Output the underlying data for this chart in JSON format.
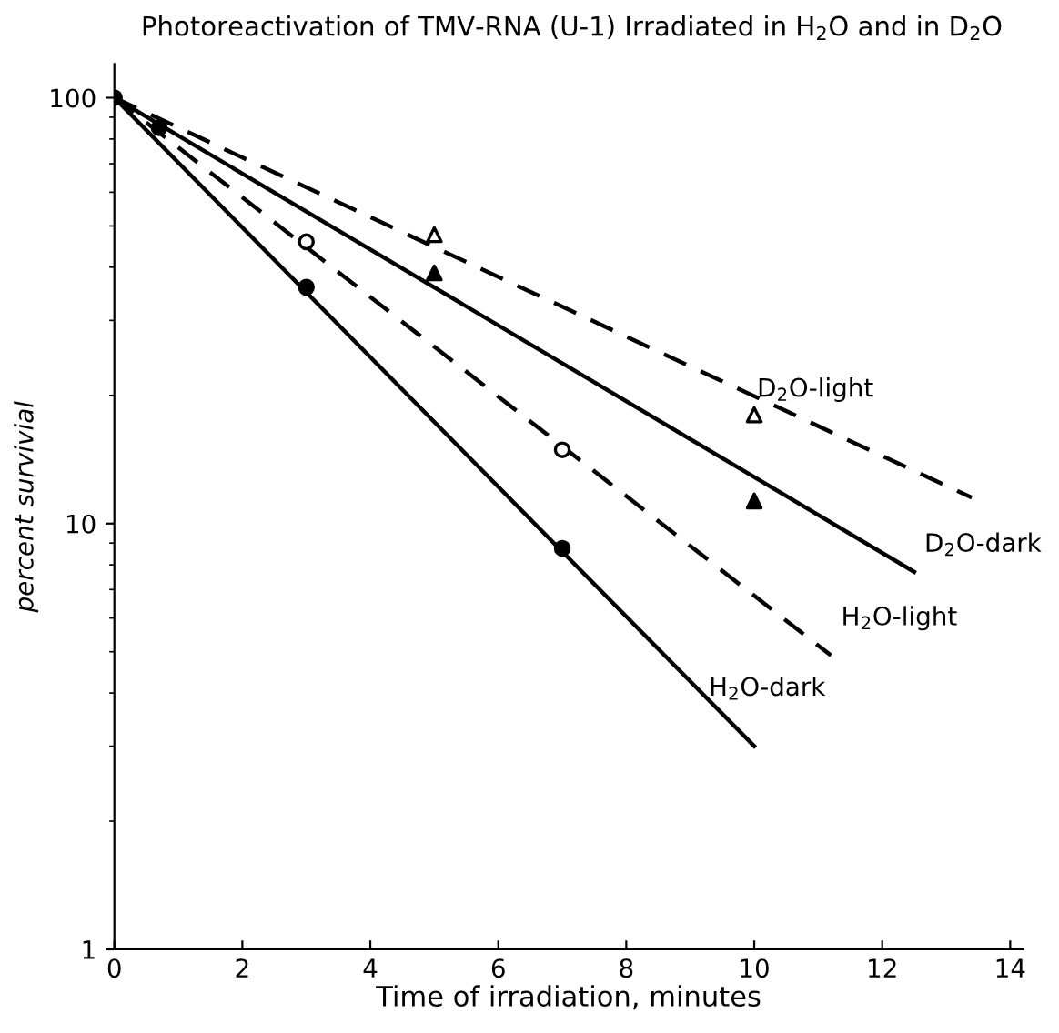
{
  "chart_data": {
    "type": "line",
    "title": "Photoreactivation of TMV-RNA (U-1) Irradiated in H$_{2}$O and in D$_{2}$O",
    "xlabel": "Time of irradiation, minutes",
    "ylabel": "percent survivial",
    "log": "y",
    "xlim": [
      0,
      14.2
    ],
    "ylim": [
      1,
      120
    ],
    "xticks": [
      0,
      2,
      4,
      6,
      8,
      10,
      12,
      14
    ],
    "yticks": [
      1,
      10,
      100
    ],
    "grid": false,
    "legend": false,
    "series": [
      {
        "name": "D$_{2}$O-light",
        "line_style": "dashed",
        "color": "#000000",
        "x": [
          0,
          13.4
        ],
        "values": [
          100,
          11.5
        ]
      },
      {
        "name": "D$_{2}$O-dark",
        "line_style": "solid",
        "color": "#000000",
        "x": [
          0,
          12.5
        ],
        "values": [
          100,
          7.7
        ]
      },
      {
        "name": "H$_{2}$O-light",
        "line_style": "dashed",
        "color": "#000000",
        "x": [
          0,
          11.2
        ],
        "values": [
          100,
          4.9
        ]
      },
      {
        "name": "H$_{2}$O-dark",
        "line_style": "solid",
        "color": "#000000",
        "x": [
          0,
          10
        ],
        "values": [
          100,
          3.0
        ]
      },
      {
        "type": "scatter",
        "marker": "triangle",
        "color": "#ffffff",
        "x": [
          5,
          10
        ],
        "values": [
          47.7,
          18
        ]
      },
      {
        "type": "scatter",
        "marker": "triangle",
        "color": "#000000",
        "x": [
          5,
          10
        ],
        "values": [
          38.8,
          11.3
        ]
      },
      {
        "type": "scatter",
        "marker": "circle",
        "color": "#ffffff",
        "x": [
          3,
          7
        ],
        "values": [
          45.9,
          14.9
        ]
      },
      {
        "type": "scatter",
        "marker": "circle",
        "color": "#000000",
        "x": [
          0,
          0.7,
          3,
          7
        ],
        "values": [
          100,
          85,
          35.9,
          8.75
        ]
      }
    ]
  }
}
